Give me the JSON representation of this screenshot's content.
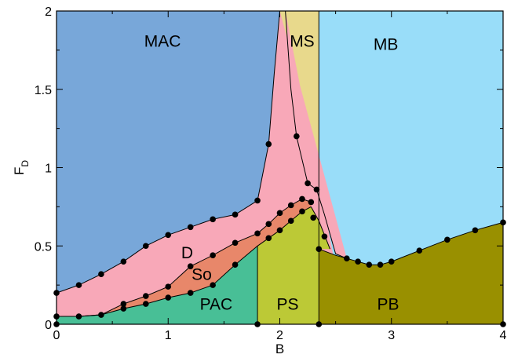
{
  "chart_data": {
    "type": "area",
    "title": "",
    "xlabel": "B",
    "ylabel": {
      "main": "F",
      "sub": "D"
    },
    "xlim": [
      0,
      4
    ],
    "ylim": [
      0,
      2
    ],
    "xticks": [
      0,
      1,
      2,
      3,
      4
    ],
    "yticks": [
      0,
      0.5,
      1,
      1.5,
      2
    ],
    "xtick_labels": [
      "0",
      "1",
      "2",
      "3",
      "4"
    ],
    "ytick_labels": [
      "0",
      "0.5",
      "1",
      "1.5",
      "2"
    ],
    "grid": false,
    "legend": "none",
    "boundaries": {
      "pac_top": [
        [
          0,
          0.05
        ],
        [
          0.2,
          0.05
        ],
        [
          0.4,
          0.06
        ],
        [
          0.6,
          0.1
        ],
        [
          0.8,
          0.13
        ],
        [
          1.0,
          0.17
        ],
        [
          1.2,
          0.2
        ],
        [
          1.4,
          0.25
        ],
        [
          1.6,
          0.38
        ],
        [
          1.8,
          0.5
        ],
        [
          1.9,
          0.55
        ],
        [
          2.0,
          0.6
        ],
        [
          2.1,
          0.66
        ],
        [
          2.2,
          0.72
        ],
        [
          2.28,
          0.75
        ]
      ],
      "so_top": [
        [
          0,
          0.05
        ],
        [
          0.2,
          0.05
        ],
        [
          0.4,
          0.06
        ],
        [
          0.6,
          0.13
        ],
        [
          0.8,
          0.18
        ],
        [
          1.0,
          0.24
        ],
        [
          1.2,
          0.37
        ],
        [
          1.4,
          0.44
        ],
        [
          1.6,
          0.52
        ],
        [
          1.8,
          0.58
        ],
        [
          1.9,
          0.64
        ],
        [
          2.0,
          0.71
        ],
        [
          2.1,
          0.76
        ],
        [
          2.2,
          0.8
        ],
        [
          2.28,
          0.78
        ]
      ],
      "d_top": [
        [
          0,
          0.2
        ],
        [
          0.2,
          0.25
        ],
        [
          0.4,
          0.32
        ],
        [
          0.6,
          0.4
        ],
        [
          0.8,
          0.5
        ],
        [
          1.0,
          0.57
        ],
        [
          1.2,
          0.62
        ],
        [
          1.4,
          0.67
        ],
        [
          1.6,
          0.7
        ],
        [
          1.8,
          0.79
        ],
        [
          1.9,
          1.15
        ],
        [
          1.95,
          1.6
        ],
        [
          2.0,
          2.0
        ]
      ],
      "d_right": [
        [
          2.05,
          2.0
        ],
        [
          2.1,
          1.5
        ],
        [
          2.15,
          1.2
        ],
        [
          2.25,
          0.9
        ],
        [
          2.33,
          0.86
        ],
        [
          2.4,
          0.7
        ],
        [
          2.5,
          0.45
        ],
        [
          2.6,
          0.42
        ]
      ],
      "ps_top": [
        [
          2.28,
          0.75
        ],
        [
          2.35,
          0.66
        ],
        [
          2.45,
          0.48
        ]
      ],
      "ms_ps_divider_x": 2.35,
      "pac_ps_divider_x": 1.8,
      "pb_top": [
        [
          2.35,
          0.48
        ],
        [
          2.5,
          0.44
        ],
        [
          2.6,
          0.42
        ],
        [
          2.7,
          0.4
        ],
        [
          2.8,
          0.38
        ],
        [
          2.9,
          0.38
        ],
        [
          3.0,
          0.4
        ],
        [
          3.25,
          0.47
        ],
        [
          3.5,
          0.54
        ],
        [
          3.75,
          0.6
        ],
        [
          4.0,
          0.65
        ]
      ]
    },
    "points": [
      [
        0,
        0.2
      ],
      [
        0.2,
        0.25
      ],
      [
        0.4,
        0.32
      ],
      [
        0.6,
        0.4
      ],
      [
        0.8,
        0.5
      ],
      [
        1.0,
        0.57
      ],
      [
        1.2,
        0.62
      ],
      [
        1.4,
        0.67
      ],
      [
        1.6,
        0.7
      ],
      [
        1.8,
        0.79
      ],
      [
        1.9,
        1.15
      ],
      [
        2.15,
        1.2
      ],
      [
        2.25,
        0.9
      ],
      [
        2.33,
        0.86
      ],
      [
        0,
        0.05
      ],
      [
        0.6,
        0.13
      ],
      [
        0.8,
        0.18
      ],
      [
        1.0,
        0.24
      ],
      [
        1.2,
        0.37
      ],
      [
        1.4,
        0.44
      ],
      [
        1.6,
        0.52
      ],
      [
        1.8,
        0.58
      ],
      [
        1.9,
        0.64
      ],
      [
        2.0,
        0.71
      ],
      [
        2.1,
        0.76
      ],
      [
        2.2,
        0.8
      ],
      [
        2.28,
        0.78
      ],
      [
        0.2,
        0.05
      ],
      [
        0.4,
        0.06
      ],
      [
        0.6,
        0.1
      ],
      [
        0.8,
        0.13
      ],
      [
        1.0,
        0.17
      ],
      [
        1.2,
        0.2
      ],
      [
        1.4,
        0.25
      ],
      [
        1.6,
        0.38
      ],
      [
        1.9,
        0.55
      ],
      [
        2.0,
        0.6
      ],
      [
        2.1,
        0.66
      ],
      [
        2.2,
        0.72
      ],
      [
        2.3,
        0.68
      ],
      [
        2.4,
        0.56
      ],
      [
        2.35,
        0.48
      ],
      [
        2.6,
        0.42
      ],
      [
        2.7,
        0.4
      ],
      [
        2.8,
        0.38
      ],
      [
        2.9,
        0.38
      ],
      [
        3.0,
        0.4
      ],
      [
        3.25,
        0.47
      ],
      [
        3.5,
        0.54
      ],
      [
        3.75,
        0.6
      ],
      [
        4.0,
        0.65
      ],
      [
        0,
        0
      ],
      [
        1.8,
        0
      ],
      [
        2.35,
        0
      ],
      [
        4.0,
        0
      ]
    ],
    "regions": [
      {
        "name": "MAC",
        "label_at": [
          0.95,
          1.8
        ],
        "color": "#78a7d9"
      },
      {
        "name": "MS",
        "label_at": [
          2.2,
          1.8
        ],
        "color": "#e8d98c"
      },
      {
        "name": "MB",
        "label_at": [
          2.95,
          1.78
        ],
        "color": "#99ddf9"
      },
      {
        "name": "D",
        "label_at": [
          1.17,
          0.45
        ],
        "color": "#f8a8b8"
      },
      {
        "name": "So",
        "label_at": [
          1.3,
          0.31
        ],
        "color": "#e8876a"
      },
      {
        "name": "PAC",
        "label_at": [
          1.43,
          0.12
        ],
        "color": "#48bf96"
      },
      {
        "name": "PS",
        "label_at": [
          2.07,
          0.12
        ],
        "color": "#bcc936"
      },
      {
        "name": "PB",
        "label_at": [
          2.97,
          0.12
        ],
        "color": "#999000"
      }
    ]
  }
}
